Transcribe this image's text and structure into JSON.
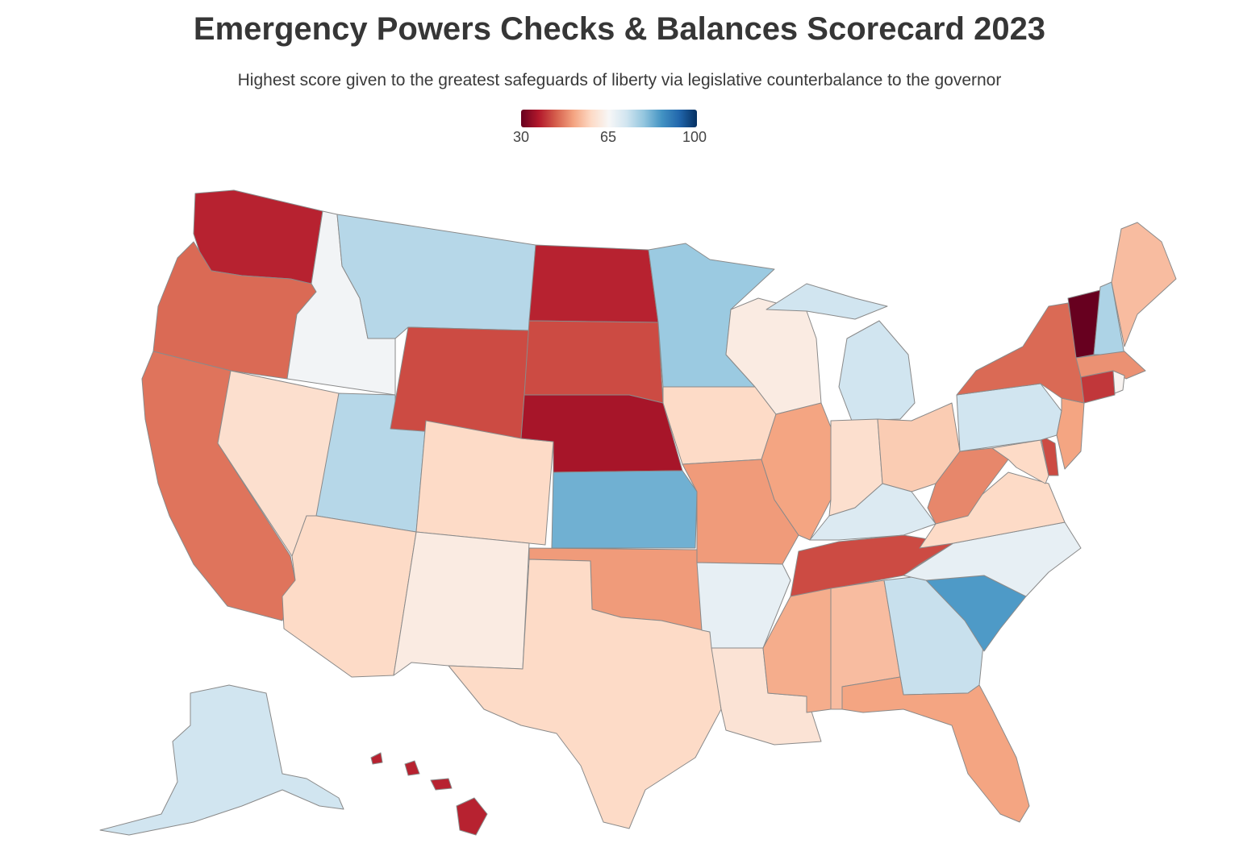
{
  "header": {
    "title": "Emergency Powers Checks & Balances Scorecard 2023",
    "subtitle": "Highest score given to the greatest safeguards of liberty via legislative counterbalance to the governor"
  },
  "legend": {
    "min_label": "30",
    "mid_label": "65",
    "max_label": "100",
    "scale_min": 30,
    "scale_mid": 65,
    "scale_max": 100,
    "colors": [
      "#67001f",
      "#b2182b",
      "#d6604d",
      "#f4a582",
      "#fddbc7",
      "#f7f7f7",
      "#d1e5f0",
      "#92c5de",
      "#4393c3",
      "#2166ac",
      "#053061"
    ]
  },
  "chart_data": {
    "type": "choropleth",
    "region": "United States",
    "color_scale": "diverging red-white-blue",
    "range": [
      30,
      100
    ],
    "states": [
      {
        "state": "Washington",
        "score": 38
      },
      {
        "state": "Oregon",
        "score": 45
      },
      {
        "state": "California",
        "score": 46
      },
      {
        "state": "Idaho",
        "score": 66
      },
      {
        "state": "Nevada",
        "score": 59
      },
      {
        "state": "Utah",
        "score": 75
      },
      {
        "state": "Arizona",
        "score": 58
      },
      {
        "state": "Montana",
        "score": 75
      },
      {
        "state": "Wyoming",
        "score": 42
      },
      {
        "state": "Colorado",
        "score": 58
      },
      {
        "state": "New Mexico",
        "score": 62
      },
      {
        "state": "North Dakota",
        "score": 38
      },
      {
        "state": "South Dakota",
        "score": 42
      },
      {
        "state": "Nebraska",
        "score": 36
      },
      {
        "state": "Kansas",
        "score": 82
      },
      {
        "state": "Oklahoma",
        "score": 50
      },
      {
        "state": "Texas",
        "score": 58
      },
      {
        "state": "Minnesota",
        "score": 78
      },
      {
        "state": "Iowa",
        "score": 58
      },
      {
        "state": "Missouri",
        "score": 50
      },
      {
        "state": "Arkansas",
        "score": 68
      },
      {
        "state": "Louisiana",
        "score": 60
      },
      {
        "state": "Wisconsin",
        "score": 62
      },
      {
        "state": "Illinois",
        "score": 51
      },
      {
        "state": "Michigan",
        "score": 72
      },
      {
        "state": "Indiana",
        "score": 59
      },
      {
        "state": "Ohio",
        "score": 56
      },
      {
        "state": "Kentucky",
        "score": 70
      },
      {
        "state": "Tennessee",
        "score": 42
      },
      {
        "state": "Mississippi",
        "score": 52
      },
      {
        "state": "Alabama",
        "score": 54
      },
      {
        "state": "Georgia",
        "score": 73
      },
      {
        "state": "Florida",
        "score": 51
      },
      {
        "state": "South Carolina",
        "score": 85
      },
      {
        "state": "North Carolina",
        "score": 68
      },
      {
        "state": "Virginia",
        "score": 58
      },
      {
        "state": "West Virginia",
        "score": 48
      },
      {
        "state": "Maryland",
        "score": 58
      },
      {
        "state": "Delaware",
        "score": 42
      },
      {
        "state": "Pennsylvania",
        "score": 72
      },
      {
        "state": "New Jersey",
        "score": 51
      },
      {
        "state": "New York",
        "score": 45
      },
      {
        "state": "Connecticut",
        "score": 40
      },
      {
        "state": "Rhode Island",
        "score": 64
      },
      {
        "state": "Massachusetts",
        "score": 49
      },
      {
        "state": "Vermont",
        "score": 30
      },
      {
        "state": "New Hampshire",
        "score": 76
      },
      {
        "state": "Maine",
        "score": 54
      },
      {
        "state": "Alaska",
        "score": 72
      },
      {
        "state": "Hawaii",
        "score": 38
      }
    ]
  }
}
